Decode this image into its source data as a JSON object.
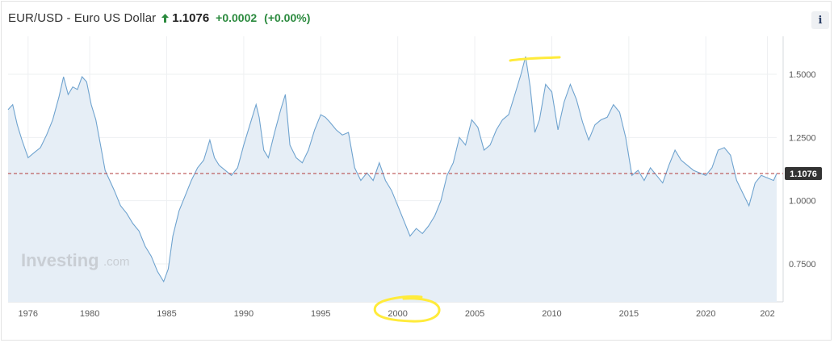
{
  "header": {
    "title": "EUR/USD - Euro US Dollar",
    "price": "1.1076",
    "change": "+0.0002",
    "change_pct": "(+0.00%)",
    "up_color": "#2b8a3e",
    "arrow_icon": "up-arrow-icon"
  },
  "info_button": {
    "label": "i",
    "icon": "info-icon"
  },
  "watermark": {
    "brand": "Investing",
    "suffix": ".com"
  },
  "colors": {
    "line": "#6fa3cf",
    "area": "#e6eef6",
    "price_line": "#b23a3a",
    "price_tag_bg": "#333333",
    "annotation": "#ffeb3b"
  },
  "chart_data": {
    "type": "area",
    "x_ticks": [
      "1976",
      "1980",
      "1985",
      "1990",
      "1995",
      "2000",
      "2005",
      "2010",
      "2015",
      "2020",
      "202"
    ],
    "y_ticks": [
      "1.5000",
      "1.2500",
      "1.0000",
      "0.7500"
    ],
    "xlim": [
      1974.7,
      2024.6
    ],
    "ylim": [
      0.6,
      1.65
    ],
    "current_price": 1.1076,
    "current_price_label": "1.1076",
    "grid": true,
    "x": [
      1974.7,
      1975.0,
      1975.3,
      1975.6,
      1976.0,
      1976.4,
      1976.8,
      1977.2,
      1977.6,
      1978.0,
      1978.3,
      1978.6,
      1978.9,
      1979.2,
      1979.5,
      1979.8,
      1980.1,
      1980.4,
      1980.7,
      1981.0,
      1981.3,
      1981.6,
      1982.0,
      1982.4,
      1982.8,
      1983.2,
      1983.6,
      1984.0,
      1984.4,
      1984.8,
      1985.1,
      1985.4,
      1985.8,
      1986.2,
      1986.6,
      1987.0,
      1987.4,
      1987.8,
      1988.1,
      1988.4,
      1988.8,
      1989.2,
      1989.6,
      1990.0,
      1990.4,
      1990.8,
      1991.0,
      1991.3,
      1991.6,
      1992.0,
      1992.4,
      1992.7,
      1993.0,
      1993.4,
      1993.8,
      1994.2,
      1994.6,
      1995.0,
      1995.3,
      1995.6,
      1996.0,
      1996.4,
      1996.8,
      1997.2,
      1997.6,
      1998.0,
      1998.4,
      1998.8,
      1999.2,
      1999.6,
      2000.0,
      2000.4,
      2000.8,
      2001.2,
      2001.6,
      2002.0,
      2002.4,
      2002.8,
      2003.2,
      2003.6,
      2004.0,
      2004.4,
      2004.8,
      2005.2,
      2005.6,
      2006.0,
      2006.4,
      2006.8,
      2007.2,
      2007.6,
      2008.0,
      2008.3,
      2008.6,
      2008.9,
      2009.2,
      2009.6,
      2010.0,
      2010.4,
      2010.8,
      2011.2,
      2011.6,
      2012.0,
      2012.4,
      2012.8,
      2013.2,
      2013.6,
      2014.0,
      2014.4,
      2014.8,
      2015.2,
      2015.6,
      2016.0,
      2016.4,
      2016.8,
      2017.2,
      2017.6,
      2018.0,
      2018.4,
      2018.8,
      2019.2,
      2019.6,
      2020.0,
      2020.4,
      2020.8,
      2021.2,
      2021.6,
      2022.0,
      2022.4,
      2022.8,
      2023.2,
      2023.6,
      2024.0,
      2024.4,
      2024.6
    ],
    "y": [
      1.36,
      1.38,
      1.3,
      1.24,
      1.17,
      1.19,
      1.21,
      1.26,
      1.32,
      1.41,
      1.49,
      1.42,
      1.45,
      1.44,
      1.49,
      1.47,
      1.38,
      1.32,
      1.22,
      1.12,
      1.08,
      1.04,
      0.98,
      0.95,
      0.91,
      0.88,
      0.82,
      0.78,
      0.72,
      0.68,
      0.73,
      0.86,
      0.96,
      1.02,
      1.08,
      1.13,
      1.16,
      1.24,
      1.17,
      1.14,
      1.12,
      1.1,
      1.13,
      1.22,
      1.3,
      1.38,
      1.33,
      1.2,
      1.17,
      1.27,
      1.36,
      1.42,
      1.22,
      1.17,
      1.15,
      1.2,
      1.28,
      1.34,
      1.33,
      1.31,
      1.28,
      1.26,
      1.27,
      1.13,
      1.08,
      1.11,
      1.08,
      1.15,
      1.08,
      1.04,
      0.98,
      0.92,
      0.86,
      0.89,
      0.87,
      0.9,
      0.94,
      1.0,
      1.1,
      1.15,
      1.25,
      1.22,
      1.32,
      1.29,
      1.2,
      1.22,
      1.28,
      1.32,
      1.34,
      1.42,
      1.5,
      1.57,
      1.45,
      1.27,
      1.32,
      1.46,
      1.43,
      1.28,
      1.39,
      1.46,
      1.4,
      1.31,
      1.24,
      1.3,
      1.32,
      1.33,
      1.38,
      1.35,
      1.25,
      1.1,
      1.12,
      1.08,
      1.13,
      1.1,
      1.07,
      1.14,
      1.2,
      1.16,
      1.14,
      1.12,
      1.11,
      1.1,
      1.13,
      1.2,
      1.21,
      1.18,
      1.08,
      1.03,
      0.98,
      1.07,
      1.1,
      1.09,
      1.08,
      1.1076
    ]
  }
}
